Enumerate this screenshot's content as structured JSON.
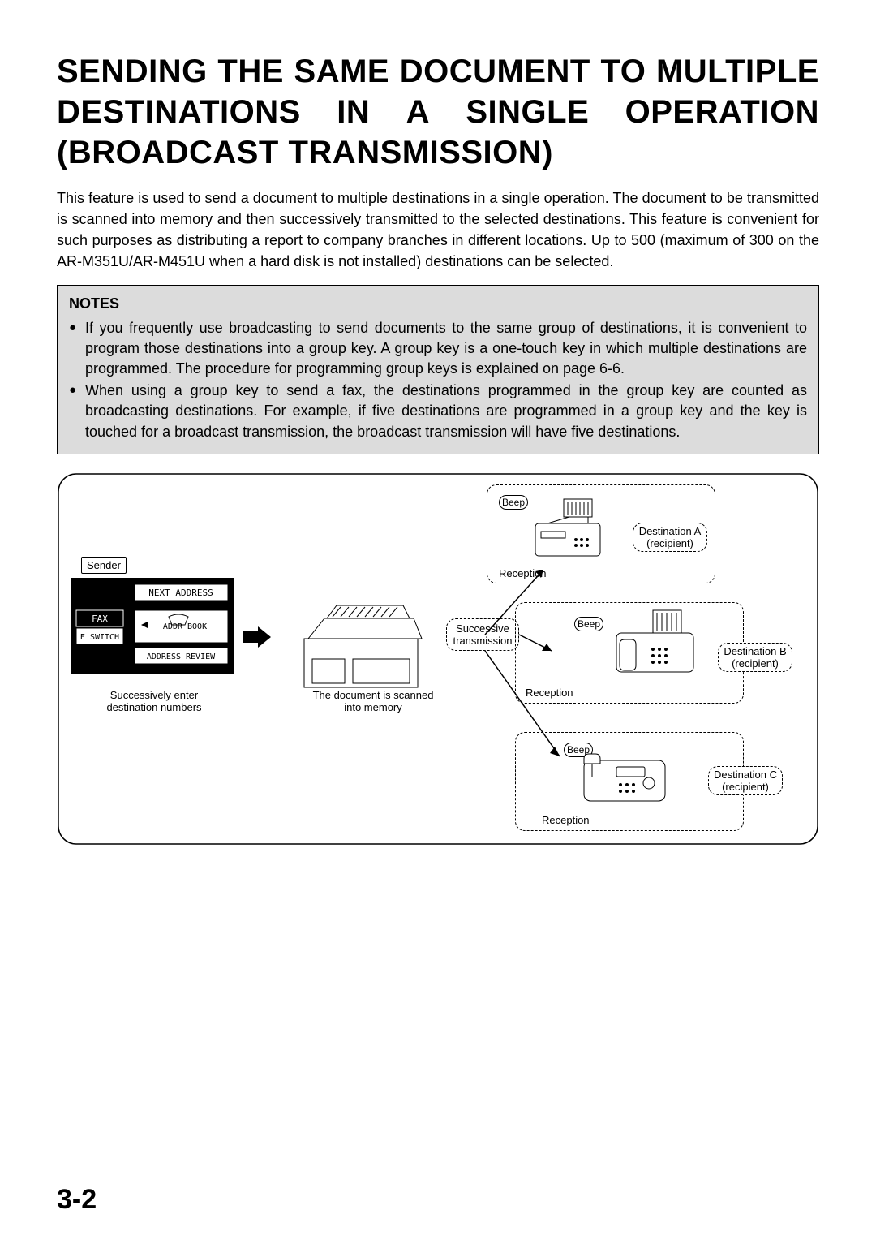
{
  "title_line1_words": [
    "SENDING",
    "THE",
    "SAME",
    "DOCUMENT",
    "TO",
    "MULTIPLE"
  ],
  "title_line2_words": [
    "DESTINATIONS",
    "IN",
    "A",
    "SINGLE",
    "OPERATION"
  ],
  "title_line3": "(BROADCAST TRANSMISSION)",
  "intro": "This feature is used to send a document to multiple destinations in a single operation. The document to be transmitted is scanned into memory and then successively transmitted to the selected destinations. This feature is convenient for such purposes as distributing a report to company branches in different locations. Up to 500 (maximum of 300 on the AR-M351U/AR-M451U when a hard disk is not installed) destinations can be selected.",
  "notes_title": "NOTES",
  "notes": [
    "If you frequently use broadcasting to send documents to the same group of destinations, it is convenient to program those destinations into a group key. A group key is a one-touch key in which multiple destinations are programmed. The procedure for programming group keys is explained on page 6-6.",
    "When using a group key to send a fax, the destinations programmed in the group key are counted as broadcasting destinations. For example, if five destinations are programmed in a group key and the key is touched for a broadcast transmission, the broadcast transmission will have five destinations."
  ],
  "diagram": {
    "sender": "Sender",
    "panel": {
      "next_address": "NEXT ADDRESS",
      "fax": "FAX",
      "switch": "E SWITCH",
      "addr_book": "ADDR     BOOK",
      "addr_review": "ADDRESS REVIEW"
    },
    "caption_sender": "Successively enter\ndestination numbers",
    "caption_scan": "The document is scanned\ninto memory",
    "successive": "Successive\ntransmission",
    "reception": "Reception",
    "beep": "Beep",
    "destinations": [
      "Destination A\n(recipient)",
      "Destination B\n(recipient)",
      "Destination C\n(recipient)"
    ]
  },
  "page_number": "3-2",
  "colors": {
    "bg": "#ffffff",
    "text": "#000000",
    "notes_bg": "#dcdcdc"
  }
}
